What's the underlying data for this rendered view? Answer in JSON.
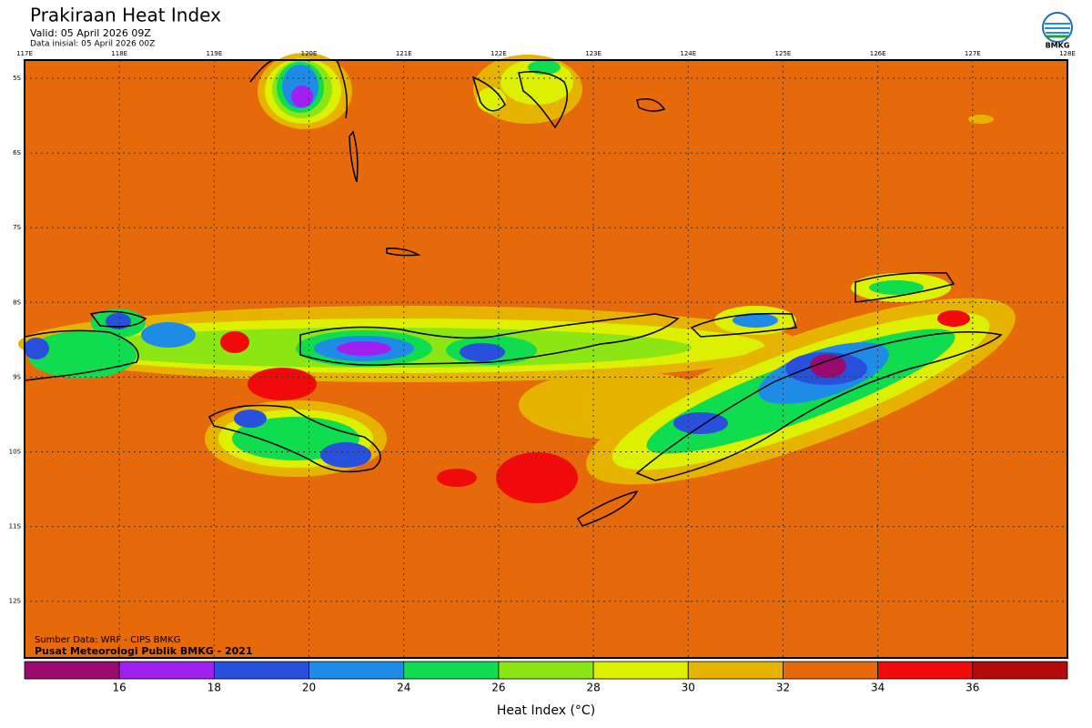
{
  "header": {
    "title": "Prakiraan Heat Index",
    "valid": "Valid: 05 April 2026 09Z",
    "initial": "Data inisial: 05 April 2026 00Z",
    "logo_text": "BMKG"
  },
  "map": {
    "lon_labels": [
      "117E",
      "118E",
      "119E",
      "120E",
      "121E",
      "122E",
      "123E",
      "124E",
      "125E",
      "126E",
      "127E",
      "128E"
    ],
    "lat_labels": [
      "5S",
      "6S",
      "7S",
      "8S",
      "9S",
      "10S",
      "11S",
      "12S"
    ],
    "source": "Sumber Data: WRF - CIPS BMKG",
    "credit": "Pusat Meteorologi Publik BMKG - 2021"
  },
  "colorbar": {
    "label": "Heat Index (°C)",
    "ticks": [
      16,
      18,
      20,
      24,
      26,
      28,
      30,
      32,
      34,
      36
    ],
    "colors": [
      "#9b0a6e",
      "#a020f0",
      "#2850dc",
      "#1e8ce6",
      "#10dc50",
      "#8ce614",
      "#dcf000",
      "#e6b400",
      "#e6690a",
      "#f00a0a",
      "#b40a0a"
    ]
  }
}
